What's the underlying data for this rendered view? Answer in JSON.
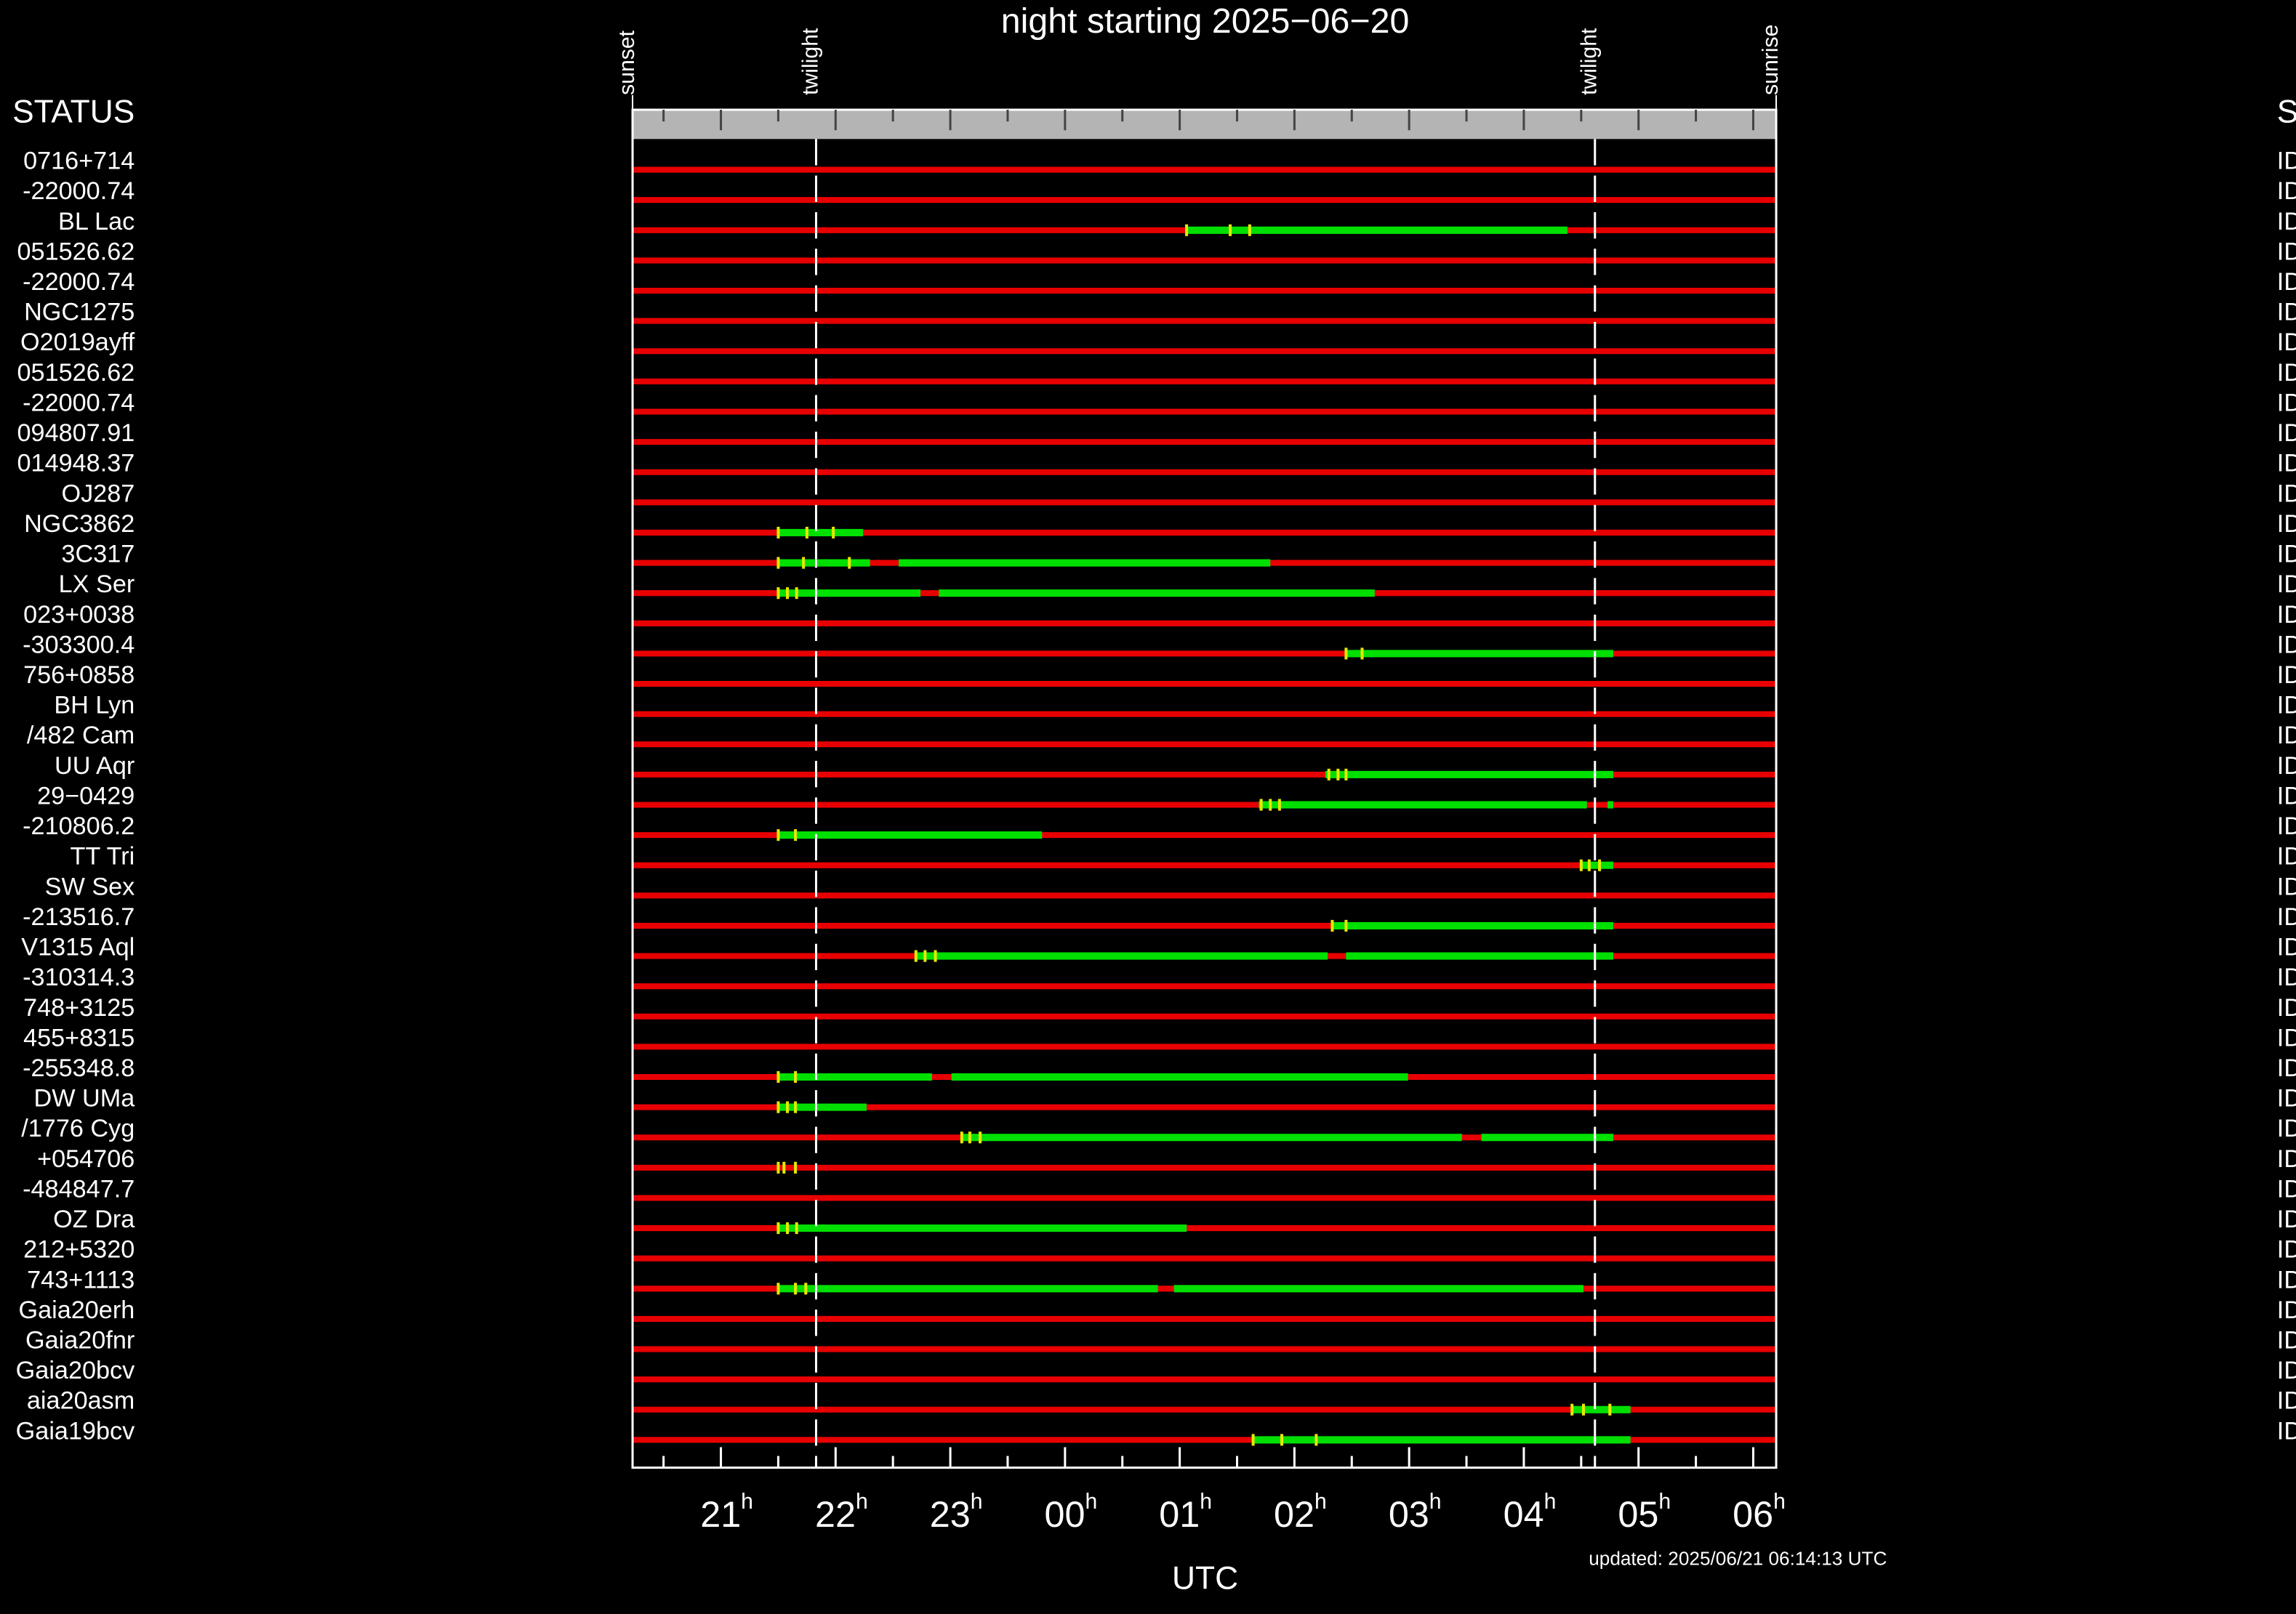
{
  "chart_data": {
    "type": "visibility",
    "title": "night starting 2025−06−20",
    "x_label": "UTC",
    "footer": "updated: 2025/06/21 06:14:13 UTC",
    "left_header": "STATUS",
    "right_header": "STATUS",
    "xlim": [
      20.23,
      30.2
    ],
    "xticks": [
      {
        "value": 21,
        "label": "21"
      },
      {
        "value": 22,
        "label": "22"
      },
      {
        "value": 23,
        "label": "23"
      },
      {
        "value": 24,
        "label": "00"
      },
      {
        "value": 25,
        "label": "01"
      },
      {
        "value": 26,
        "label": "02"
      },
      {
        "value": 27,
        "label": "03"
      },
      {
        "value": 28,
        "label": "04"
      },
      {
        "value": 29,
        "label": "05"
      },
      {
        "value": 30,
        "label": "06"
      }
    ],
    "tick_suffix": "h",
    "minor_xticks": [
      20.5,
      21.5,
      22.5,
      23.5,
      24.5,
      25.5,
      26.5,
      27.5,
      28.5,
      29.5
    ],
    "events": [
      {
        "label": "sunset",
        "x": 20.23,
        "dashed": false
      },
      {
        "label": "twilight",
        "x": 21.83,
        "dashed": true
      },
      {
        "label": "twilight",
        "x": 28.62,
        "dashed": true
      },
      {
        "label": "sunrise",
        "x": 30.2,
        "dashed": false
      }
    ],
    "colors": {
      "unobservable": "#e80000",
      "observable": "#00e000",
      "marker": "#e8e800",
      "band": "#b4b4b4"
    },
    "rows": [
      {
        "name": "0716+714",
        "status": "ID",
        "segments": [],
        "markers": []
      },
      {
        "name": "-22000.74",
        "status": "ID",
        "segments": [],
        "markers": []
      },
      {
        "name": "BL Lac",
        "status": "ID",
        "segments": [
          [
            25.06,
            28.38
          ]
        ],
        "markers": [
          25.06,
          25.44,
          25.61
        ]
      },
      {
        "name": "051526.62",
        "status": "ID",
        "segments": [],
        "markers": []
      },
      {
        "name": "-22000.74",
        "status": "ID",
        "segments": [],
        "markers": []
      },
      {
        "name": "NGC1275",
        "status": "ID",
        "segments": [],
        "markers": []
      },
      {
        "name": "O2019ayff",
        "status": "ID",
        "segments": [],
        "markers": []
      },
      {
        "name": "051526.62",
        "status": "ID",
        "segments": [],
        "markers": []
      },
      {
        "name": "-22000.74",
        "status": "ID",
        "segments": [],
        "markers": []
      },
      {
        "name": "094807.91",
        "status": "ID",
        "segments": [],
        "markers": []
      },
      {
        "name": "014948.37",
        "status": "ID",
        "segments": [],
        "markers": []
      },
      {
        "name": "OJ287",
        "status": "ID",
        "segments": [],
        "markers": []
      },
      {
        "name": "NGC3862",
        "status": "ID",
        "segments": [
          [
            21.5,
            22.24
          ]
        ],
        "markers": [
          21.5,
          21.75,
          21.98
        ]
      },
      {
        "name": "3C317",
        "status": "ID",
        "segments": [
          [
            21.5,
            22.3
          ],
          [
            22.55,
            25.79
          ]
        ],
        "markers": [
          21.5,
          21.72,
          22.12
        ]
      },
      {
        "name": "LX Ser",
        "status": "ID",
        "segments": [
          [
            21.5,
            22.74
          ],
          [
            22.9,
            26.7
          ]
        ],
        "markers": [
          21.5,
          21.58,
          21.66
        ]
      },
      {
        "name": "023+0038",
        "status": "ID",
        "segments": [],
        "markers": []
      },
      {
        "name": "-303300.4",
        "status": "ID",
        "segments": [
          [
            26.45,
            28.78
          ]
        ],
        "markers": [
          26.45,
          26.59
        ]
      },
      {
        "name": "756+0858",
        "status": "ID",
        "segments": [],
        "markers": []
      },
      {
        "name": "BH Lyn",
        "status": "ID",
        "segments": [],
        "markers": []
      },
      {
        "name": "/482 Cam",
        "status": "ID",
        "segments": [],
        "markers": []
      },
      {
        "name": "UU Aqr",
        "status": "ID",
        "segments": [
          [
            26.27,
            28.78
          ]
        ],
        "markers": [
          26.3,
          26.38,
          26.45
        ]
      },
      {
        "name": "29−0429",
        "status": "ID",
        "segments": [
          [
            25.69,
            28.55
          ],
          [
            28.73,
            28.78
          ]
        ],
        "markers": [
          25.71,
          25.79,
          25.87
        ]
      },
      {
        "name": "-210806.2",
        "status": "ID",
        "segments": [
          [
            21.5,
            23.8
          ]
        ],
        "markers": [
          21.5,
          21.65
        ]
      },
      {
        "name": "TT Tri",
        "status": "ID",
        "segments": [
          [
            28.49,
            28.78
          ]
        ],
        "markers": [
          28.5,
          28.57,
          28.66
        ]
      },
      {
        "name": "SW Sex",
        "status": "ID",
        "segments": [],
        "markers": []
      },
      {
        "name": "-213516.7",
        "status": "ID",
        "segments": [
          [
            26.33,
            28.78
          ]
        ],
        "markers": [
          26.33,
          26.45
        ]
      },
      {
        "name": "V1315 Aql",
        "status": "ID",
        "segments": [
          [
            22.7,
            26.29
          ],
          [
            26.45,
            28.78
          ]
        ],
        "markers": [
          22.7,
          22.78,
          22.87
        ]
      },
      {
        "name": "-310314.3",
        "status": "ID",
        "segments": [],
        "markers": []
      },
      {
        "name": "748+3125",
        "status": "ID",
        "segments": [],
        "markers": []
      },
      {
        "name": "455+8315",
        "status": "ID",
        "segments": [],
        "markers": []
      },
      {
        "name": "-255348.8",
        "status": "ID",
        "segments": [
          [
            21.5,
            22.84
          ],
          [
            23.01,
            26.99
          ]
        ],
        "markers": [
          21.5,
          21.65
        ]
      },
      {
        "name": "DW UMa",
        "status": "ID",
        "segments": [
          [
            21.5,
            22.27
          ]
        ],
        "markers": [
          21.5,
          21.58,
          21.65
        ]
      },
      {
        "name": "/1776 Cyg",
        "status": "ID",
        "segments": [
          [
            23.1,
            27.46
          ],
          [
            27.63,
            28.78
          ]
        ],
        "markers": [
          23.1,
          23.17,
          23.26
        ]
      },
      {
        "name": "+054706",
        "status": "ID",
        "segments": [],
        "markers": [
          21.5,
          21.55,
          21.65
        ]
      },
      {
        "name": "-484847.7",
        "status": "ID",
        "segments": [],
        "markers": []
      },
      {
        "name": "OZ Dra",
        "status": "ID",
        "segments": [
          [
            21.5,
            25.06
          ]
        ],
        "markers": [
          21.5,
          21.58,
          21.66
        ]
      },
      {
        "name": "212+5320",
        "status": "ID",
        "segments": [],
        "markers": []
      },
      {
        "name": "743+1113",
        "status": "ID",
        "segments": [
          [
            21.5,
            24.81
          ],
          [
            24.95,
            28.52
          ]
        ],
        "markers": [
          21.5,
          21.65,
          21.74
        ]
      },
      {
        "name": "Gaia20erh",
        "status": "ID",
        "segments": [],
        "markers": []
      },
      {
        "name": "Gaia20fnr",
        "status": "ID",
        "segments": [],
        "markers": []
      },
      {
        "name": "Gaia20bcv",
        "status": "ID",
        "segments": [],
        "markers": []
      },
      {
        "name": "aia20asm",
        "status": "ID",
        "segments": [
          [
            28.42,
            28.93
          ]
        ],
        "markers": [
          28.42,
          28.52,
          28.75
        ]
      },
      {
        "name": "Gaia19bcv",
        "status": "ID",
        "segments": [
          [
            25.64,
            28.93
          ]
        ],
        "markers": [
          25.64,
          25.89,
          26.19
        ]
      }
    ]
  }
}
